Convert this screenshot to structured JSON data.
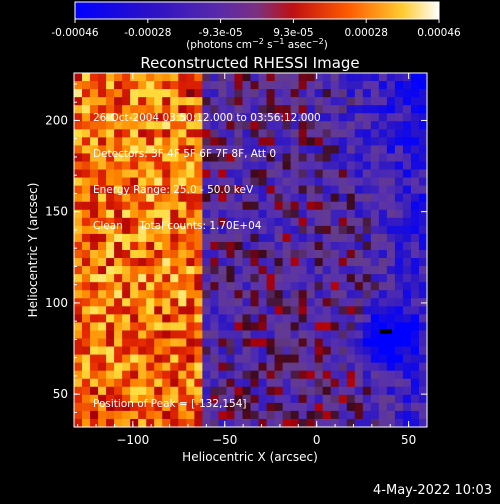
{
  "colorbar": {
    "ticks": [
      "-0.00046",
      "-0.00028",
      "-9.3e-05",
      "9.3e-05",
      "0.00028",
      "0.00046"
    ],
    "units_html": "(photons cm⁻² s⁻¹ asec⁻²)"
  },
  "chart_data": {
    "type": "heatmap",
    "title": "Reconstructed RHESSI Image",
    "xlabel": "Heliocentric X (arcsec)",
    "ylabel": "Heliocentric Y (arcsec)",
    "xlim": [
      -132,
      60
    ],
    "ylim": [
      32,
      226
    ],
    "x_ticks": [
      -100,
      -50,
      0,
      50
    ],
    "y_ticks": [
      50,
      100,
      150,
      200
    ],
    "x_tick_labels": [
      "−100",
      "−50",
      "0",
      "50"
    ],
    "y_tick_labels": [
      "50",
      "100",
      "150",
      "200"
    ],
    "colorbar_range": [
      -0.00046,
      0.00046
    ],
    "colormap": "blue-purple-red-yellow-white",
    "annotations": [
      "26-Oct-2004 03:50:12.000 to 03:56:12.000",
      "Detectors: 3F 4F 5F 6F 7F 8F, Att 0",
      "Energy Range: 25.0 - 50.0 keV",
      "Clean     Total counts: 1.70E+04"
    ],
    "peak_label": "Position of Peak = [-132,154]",
    "peak_position": [
      -132,
      154
    ]
  },
  "footer": {
    "date": "4-May-2022 10:03"
  }
}
